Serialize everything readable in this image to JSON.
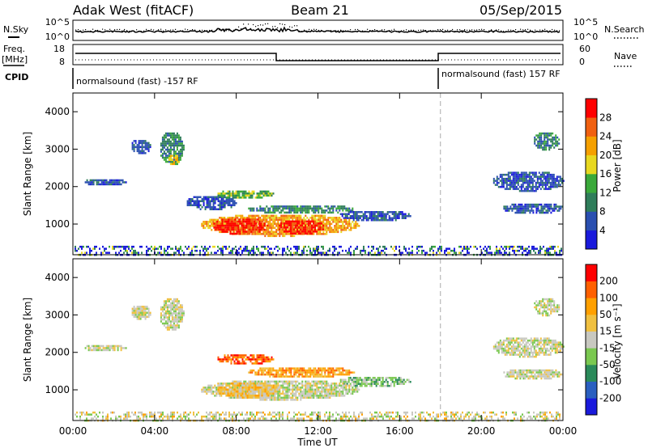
{
  "header": {
    "station": "Adak West (fitACF)",
    "beam": "Beam 21",
    "date": "05/Sep/2015"
  },
  "left_labels": {
    "nsky": "N.Sky",
    "freq_top": "Freq.",
    "freq_unit": "[MHz]",
    "cpid": "CPID"
  },
  "right_labels": {
    "nsearch": "N.Search",
    "nave": "Nave"
  },
  "noise_panel": {
    "left_ticks": [
      "10^5",
      "10^0"
    ],
    "right_ticks": [
      "10^5",
      "10^0"
    ]
  },
  "freq_panel": {
    "left_ticks": [
      "18",
      "8"
    ],
    "right_ticks": [
      "60",
      "0"
    ]
  },
  "cpid_panel": {
    "segments": [
      {
        "label": "normalsound (fast) -157 RF",
        "start_hour": 0
      },
      {
        "label": "normalsound (fast) 157 RF",
        "start_hour": 18
      }
    ]
  },
  "chart_data": [
    {
      "type": "heatmap",
      "title": "",
      "xlabel": "Time UT",
      "ylabel": "Slant Range [km]",
      "x_ticks": [
        "00:00",
        "04:00",
        "08:00",
        "12:00",
        "16:00",
        "20:00",
        "00:00"
      ],
      "xlim_hours": [
        0,
        24
      ],
      "y_ticks": [
        1000,
        2000,
        3000,
        4000
      ],
      "ylim_km": [
        180,
        4500
      ],
      "colorbar": {
        "label": "Power [dB]",
        "ticks": [
          "4",
          "8",
          "12",
          "16",
          "20",
          "24",
          "28"
        ],
        "colors": [
          "#1a1adc",
          "#2a4fb0",
          "#2f7d5a",
          "#3aa93a",
          "#e8d820",
          "#f5a000",
          "#f06010",
          "#ff0000"
        ]
      },
      "echo_regions": [
        {
          "t0": 0.5,
          "t1": 2.6,
          "r0": 2050,
          "r1": 2250,
          "level": 1
        },
        {
          "t0": 2.8,
          "t1": 3.8,
          "r0": 2900,
          "r1": 3300,
          "level": 1
        },
        {
          "t0": 4.2,
          "t1": 5.4,
          "r0": 2600,
          "r1": 3500,
          "level": 2
        },
        {
          "t0": 4.6,
          "t1": 5.2,
          "r0": 2600,
          "r1": 2900,
          "level": 4
        },
        {
          "t0": 5.5,
          "t1": 8.0,
          "r0": 1400,
          "r1": 1800,
          "level": 1
        },
        {
          "t0": 7.0,
          "t1": 9.8,
          "r0": 1700,
          "r1": 1950,
          "level": 3
        },
        {
          "t0": 8.5,
          "t1": 13.8,
          "r0": 1300,
          "r1": 1550,
          "level": 2
        },
        {
          "t0": 13.0,
          "t1": 16.5,
          "r0": 1100,
          "r1": 1400,
          "level": 1
        },
        {
          "t0": 6.2,
          "t1": 14.0,
          "r0": 700,
          "r1": 1300,
          "level": 5
        },
        {
          "t0": 6.8,
          "t1": 9.5,
          "r0": 750,
          "r1": 1200,
          "level": 7
        },
        {
          "t0": 10.0,
          "t1": 12.3,
          "r0": 750,
          "r1": 1150,
          "level": 7
        },
        {
          "t0": 20.5,
          "t1": 24.0,
          "r0": 1900,
          "r1": 2450,
          "level": 1
        },
        {
          "t0": 21.0,
          "t1": 24.0,
          "r0": 1300,
          "r1": 1600,
          "level": 1
        },
        {
          "t0": 22.5,
          "t1": 23.8,
          "r0": 3000,
          "r1": 3500,
          "level": 2
        }
      ],
      "ground_scatter_band_km": [
        180,
        420
      ]
    },
    {
      "type": "heatmap",
      "title": "",
      "xlabel": "Time UT",
      "ylabel": "Slant Range [km]",
      "x_ticks": [
        "00:00",
        "04:00",
        "08:00",
        "12:00",
        "16:00",
        "20:00",
        "00:00"
      ],
      "xlim_hours": [
        0,
        24
      ],
      "y_ticks": [
        1000,
        2000,
        3000,
        4000
      ],
      "ylim_km": [
        180,
        4500
      ],
      "colorbar": {
        "label": "Velocity [m s⁻¹]",
        "ticks": [
          "200",
          "100",
          "50",
          "15",
          "-15",
          "-50",
          "-100",
          "-200"
        ],
        "colors": [
          "#1a1adc",
          "#2a5fc0",
          "#2a8a5a",
          "#7ac850",
          "#c8c8c0",
          "#f0c040",
          "#ffa000",
          "#ff6000",
          "#ff0000"
        ]
      },
      "echo_regions": [
        {
          "t0": 0.5,
          "t1": 2.6,
          "r0": 2050,
          "r1": 2250,
          "level": 4
        },
        {
          "t0": 2.8,
          "t1": 3.8,
          "r0": 2900,
          "r1": 3300,
          "level": 4
        },
        {
          "t0": 4.2,
          "t1": 5.4,
          "r0": 2600,
          "r1": 3500,
          "level": 4
        },
        {
          "t0": 7.0,
          "t1": 9.8,
          "r0": 1700,
          "r1": 2000,
          "level": 7
        },
        {
          "t0": 8.5,
          "t1": 13.8,
          "r0": 1350,
          "r1": 1650,
          "level": 6
        },
        {
          "t0": 13.0,
          "t1": 16.5,
          "r0": 1100,
          "r1": 1400,
          "level": 3
        },
        {
          "t0": 6.2,
          "t1": 14.0,
          "r0": 750,
          "r1": 1300,
          "level": 4
        },
        {
          "t0": 7.0,
          "t1": 10.0,
          "r0": 800,
          "r1": 1250,
          "level": 5
        },
        {
          "t0": 20.5,
          "t1": 24.0,
          "r0": 1900,
          "r1": 2450,
          "level": 4
        },
        {
          "t0": 21.0,
          "t1": 24.0,
          "r0": 1300,
          "r1": 1600,
          "level": 4
        },
        {
          "t0": 22.5,
          "t1": 23.8,
          "r0": 3000,
          "r1": 3500,
          "level": 4
        }
      ],
      "ground_scatter_band_km": [
        180,
        420
      ]
    }
  ]
}
